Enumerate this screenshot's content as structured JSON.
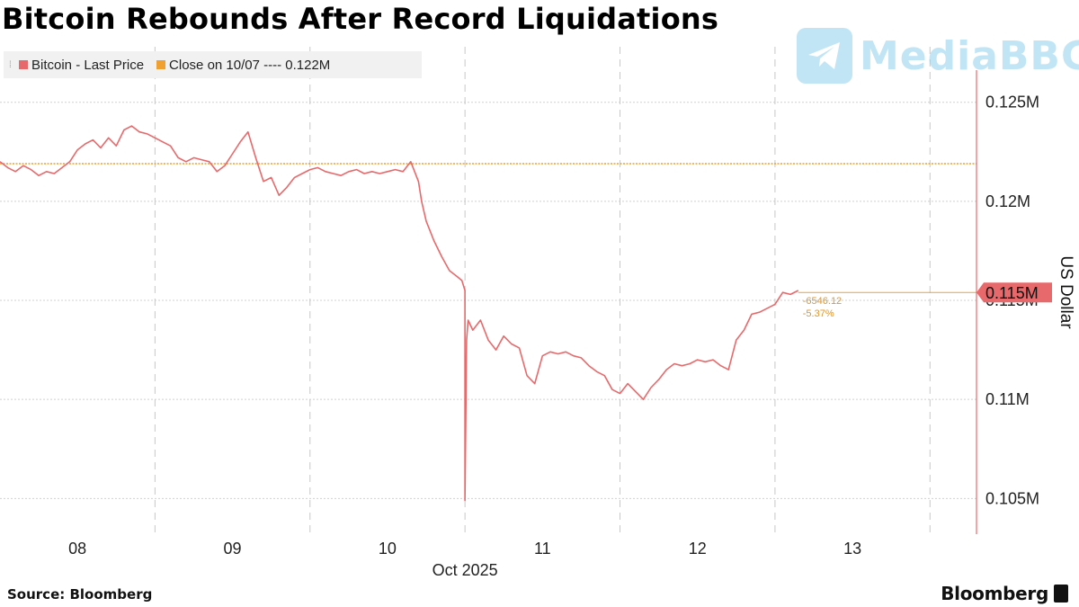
{
  "title": "Bitcoin Rebounds After Record Liquidations",
  "source": "Source: Bloomberg",
  "brand": "Bloomberg",
  "watermark": {
    "text": "MediaBBG",
    "icon": "telegram-icon"
  },
  "colors": {
    "series": "#e8696b",
    "reference": "#f0a030",
    "axis": "#e8696b",
    "grid": "#d0d0d0"
  },
  "chart_data": {
    "type": "line",
    "title": "Bitcoin Rebounds After Record Liquidations",
    "ylabel": "US Dollar",
    "xlabel": "Oct 2025",
    "ylim": [
      0.1032,
      0.1278
    ],
    "y_unit": "M",
    "yticks": [
      0.105,
      0.11,
      0.115,
      0.12,
      0.125
    ],
    "ytick_labels": [
      "0.105M",
      "0.11M",
      "0.115M",
      "0.12M",
      "0.125M"
    ],
    "xlim": [
      7.5,
      13.8
    ],
    "xticks": [
      8,
      9,
      10,
      11,
      12,
      13
    ],
    "xtick_labels": [
      "08",
      "09",
      "10",
      "11",
      "12",
      "13"
    ],
    "x_period_label": "Oct 2025",
    "grid": true,
    "legend_position": "top-left",
    "series": [
      {
        "name": "Bitcoin - Last Price",
        "x": [
          7.5,
          7.55,
          7.6,
          7.65,
          7.7,
          7.75,
          7.8,
          7.85,
          7.9,
          7.95,
          8.0,
          8.05,
          8.1,
          8.15,
          8.2,
          8.25,
          8.3,
          8.35,
          8.4,
          8.45,
          8.5,
          8.55,
          8.6,
          8.65,
          8.7,
          8.75,
          8.8,
          8.85,
          8.9,
          8.95,
          9.0,
          9.05,
          9.1,
          9.15,
          9.2,
          9.25,
          9.3,
          9.35,
          9.4,
          9.45,
          9.5,
          9.55,
          9.6,
          9.65,
          9.7,
          9.75,
          9.8,
          9.85,
          9.9,
          9.95,
          10.0,
          10.05,
          10.1,
          10.15,
          10.2,
          10.22,
          10.25,
          10.3,
          10.35,
          10.4,
          10.45,
          10.48,
          10.5,
          10.5,
          10.51,
          10.52,
          10.55,
          10.6,
          10.65,
          10.7,
          10.75,
          10.8,
          10.85,
          10.9,
          10.95,
          11.0,
          11.05,
          11.1,
          11.15,
          11.2,
          11.25,
          11.3,
          11.35,
          11.4,
          11.45,
          11.5,
          11.55,
          11.6,
          11.65,
          11.7,
          11.75,
          11.8,
          11.85,
          11.9,
          11.95,
          12.0,
          12.05,
          12.1,
          12.15,
          12.2,
          12.25,
          12.3,
          12.35,
          12.4,
          12.45,
          12.5,
          12.55,
          12.6,
          12.65
        ],
        "values": [
          0.122,
          0.1217,
          0.1215,
          0.1218,
          0.1216,
          0.1213,
          0.1215,
          0.1214,
          0.1217,
          0.122,
          0.1226,
          0.1229,
          0.1231,
          0.1227,
          0.1232,
          0.1228,
          0.1236,
          0.1238,
          0.1235,
          0.1234,
          0.1232,
          0.123,
          0.1228,
          0.1222,
          0.122,
          0.1222,
          0.1221,
          0.122,
          0.1215,
          0.1218,
          0.1224,
          0.123,
          0.1235,
          0.1222,
          0.121,
          0.1212,
          0.1203,
          0.1207,
          0.1212,
          0.1214,
          0.1216,
          0.1217,
          0.1215,
          0.1214,
          0.1213,
          0.1215,
          0.1216,
          0.1214,
          0.1215,
          0.1214,
          0.1215,
          0.1216,
          0.1215,
          0.122,
          0.121,
          0.12,
          0.119,
          0.118,
          0.1172,
          0.1165,
          0.1162,
          0.116,
          0.1155,
          0.1049,
          0.113,
          0.114,
          0.1135,
          0.114,
          0.113,
          0.1125,
          0.1132,
          0.1128,
          0.1126,
          0.1112,
          0.1108,
          0.1122,
          0.1124,
          0.1123,
          0.1124,
          0.1122,
          0.1121,
          0.1117,
          0.1114,
          0.1112,
          0.1105,
          0.1103,
          0.1108,
          0.1104,
          0.11,
          0.1106,
          0.111,
          0.1115,
          0.1118,
          0.1117,
          0.1118,
          0.112,
          0.1119,
          0.112,
          0.1117,
          0.1115,
          0.113,
          0.1135,
          0.1143,
          0.1144,
          0.1146,
          0.1148,
          0.1154,
          0.1153,
          0.1155
        ]
      },
      {
        "name": "Close on 10/07 ---- 0.122M",
        "constant": 0.1219
      }
    ],
    "last_value_label": "0.115M",
    "last_value": 0.1154,
    "change_annotation": [
      "-6546.12",
      "-5.37%"
    ]
  }
}
